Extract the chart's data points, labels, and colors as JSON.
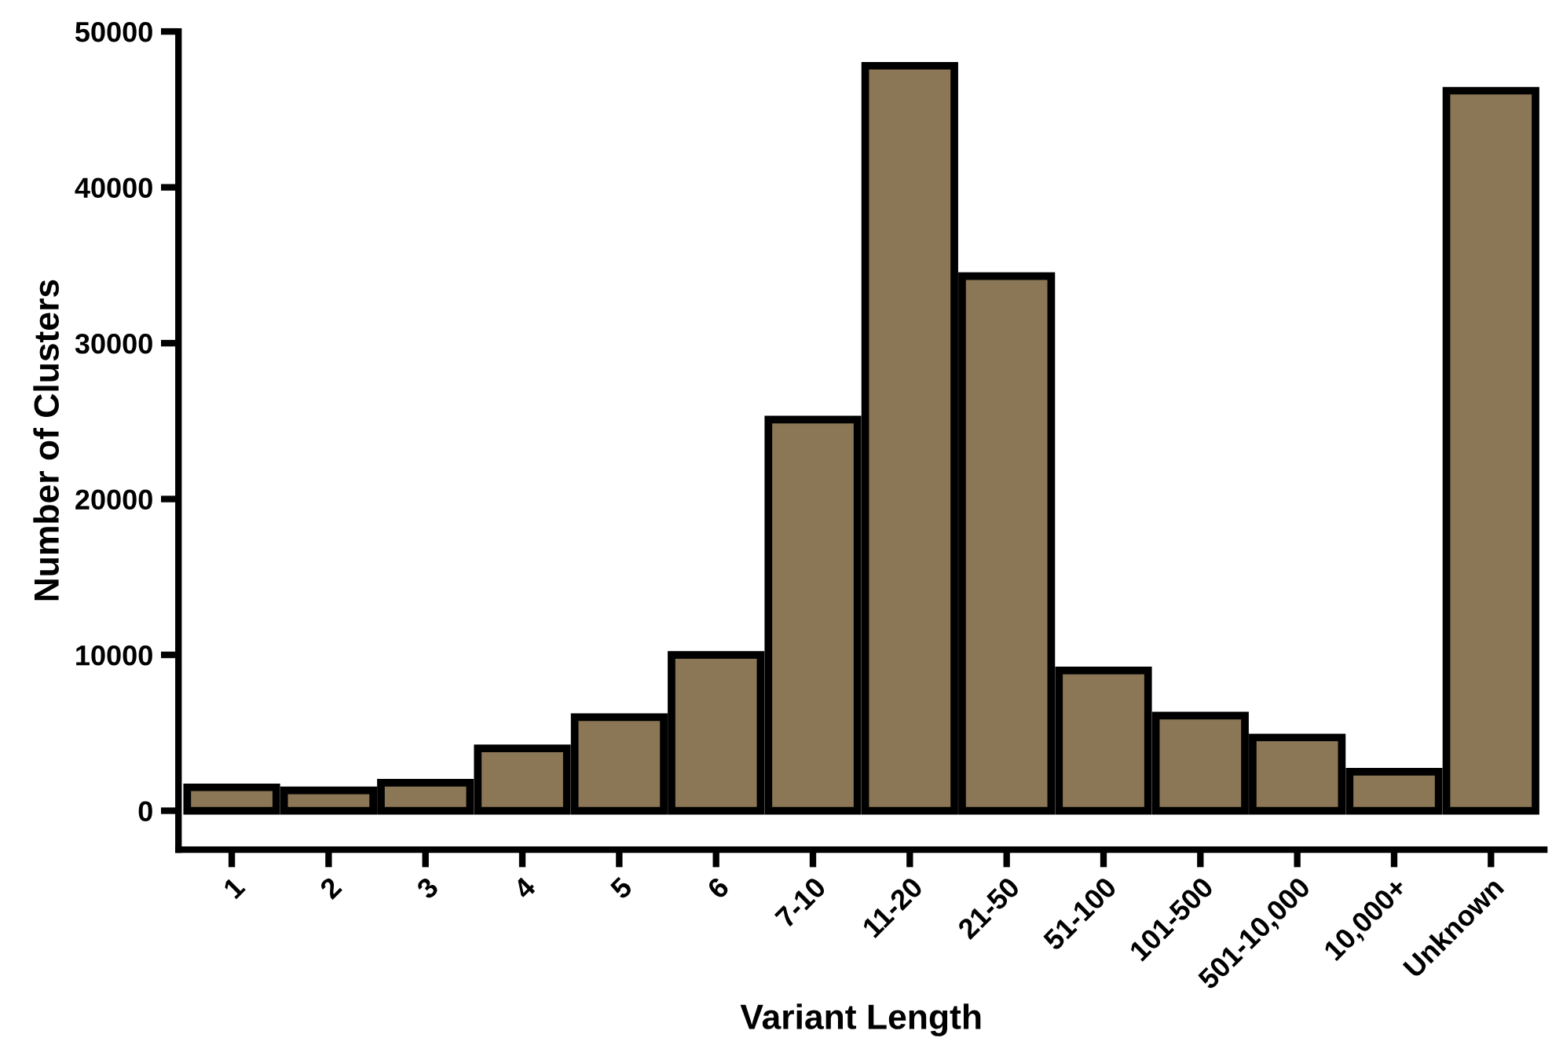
{
  "chart_data": {
    "type": "bar",
    "xlabel": "Variant Length",
    "ylabel": "Number of Clusters",
    "categories": [
      "1",
      "2",
      "3",
      "4",
      "5",
      "6",
      "7-10",
      "11-20",
      "21-50",
      "51-100",
      "101-500",
      "501-10,000",
      "10,000+",
      "Unknown"
    ],
    "values": [
      1500,
      1300,
      1800,
      4000,
      6000,
      10000,
      25100,
      47800,
      34300,
      9000,
      6100,
      4700,
      2500,
      46200
    ],
    "color": "#8b7755",
    "ylim": [
      -2500,
      50000
    ],
    "yticks": [
      0,
      10000,
      20000,
      30000,
      40000,
      50000
    ],
    "grid": false
  }
}
